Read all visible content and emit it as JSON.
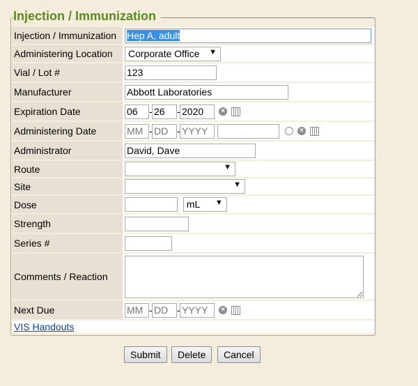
{
  "title": "Injection / Immunization",
  "fields": {
    "injection": {
      "label": "Injection / Immunization",
      "value": "Hep A, adult"
    },
    "location": {
      "label": "Administering Location",
      "value": "Corporate Office"
    },
    "lot": {
      "label": "Vial / Lot #",
      "value": "123"
    },
    "manufacturer": {
      "label": "Manufacturer",
      "value": "Abbott Laboratories"
    },
    "expiration": {
      "label": "Expiration Date",
      "mm": "06",
      "dd": "26",
      "yyyy": "2020"
    },
    "administering_date": {
      "label": "Administering Date",
      "mm_ph": "MM",
      "dd_ph": "DD",
      "yyyy_ph": "YYYY",
      "time": ""
    },
    "administrator": {
      "label": "Administrator",
      "value": "David, Dave"
    },
    "route": {
      "label": "Route",
      "value": ""
    },
    "site": {
      "label": "Site",
      "value": ""
    },
    "dose": {
      "label": "Dose",
      "value": "",
      "unit": "mL"
    },
    "strength": {
      "label": "Strength",
      "value": ""
    },
    "series": {
      "label": "Series #",
      "value": ""
    },
    "comments": {
      "label": "Comments / Reaction",
      "value": ""
    },
    "next_due": {
      "label": "Next Due",
      "mm_ph": "MM",
      "dd_ph": "DD",
      "yyyy_ph": "YYYY"
    }
  },
  "vis_link": "VIS Handouts",
  "buttons": {
    "submit": "Submit",
    "delete": "Delete",
    "cancel": "Cancel"
  },
  "colors": {
    "legend": "#5b8a1e",
    "label_bg": "#e8e1d3",
    "page_bg": "#f4ecdd"
  }
}
